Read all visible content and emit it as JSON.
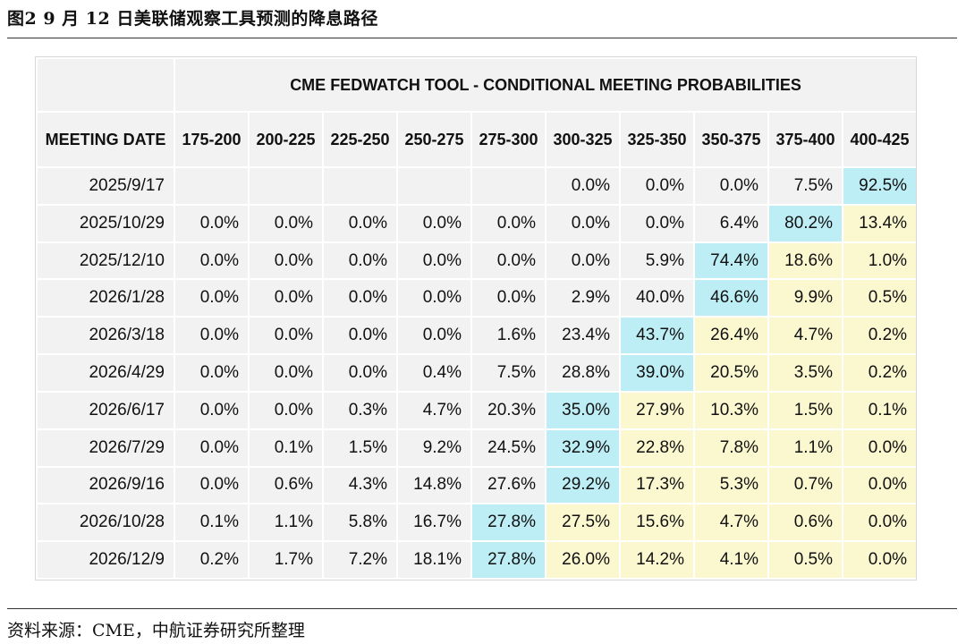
{
  "figure_title": "图2  9 月 12 日美联储观察工具预测的降息路径",
  "source": "资料来源：CME，中航证券研究所整理",
  "table": {
    "title": "CME FEDWATCH TOOL - CONDITIONAL MEETING PROBABILITIES",
    "date_header": "MEETING DATE",
    "columns": [
      "175-200",
      "200-225",
      "225-250",
      "250-275",
      "275-300",
      "300-325",
      "325-350",
      "350-375",
      "375-400",
      "400-425"
    ],
    "colors": {
      "highlight": "#bdeef5",
      "above_highlight": "#fbf8d0",
      "base": "#f2f2f2"
    },
    "rows": [
      {
        "date": "2025/9/17",
        "values": [
          "",
          "",
          "",
          "",
          "",
          "0.0%",
          "0.0%",
          "0.0%",
          "7.5%",
          "92.5%"
        ],
        "highlight": 9
      },
      {
        "date": "2025/10/29",
        "values": [
          "0.0%",
          "0.0%",
          "0.0%",
          "0.0%",
          "0.0%",
          "0.0%",
          "0.0%",
          "6.4%",
          "80.2%",
          "13.4%"
        ],
        "highlight": 8
      },
      {
        "date": "2025/12/10",
        "values": [
          "0.0%",
          "0.0%",
          "0.0%",
          "0.0%",
          "0.0%",
          "0.0%",
          "5.9%",
          "74.4%",
          "18.6%",
          "1.0%"
        ],
        "highlight": 7
      },
      {
        "date": "2026/1/28",
        "values": [
          "0.0%",
          "0.0%",
          "0.0%",
          "0.0%",
          "0.0%",
          "2.9%",
          "40.0%",
          "46.6%",
          "9.9%",
          "0.5%"
        ],
        "highlight": 7
      },
      {
        "date": "2026/3/18",
        "values": [
          "0.0%",
          "0.0%",
          "0.0%",
          "0.0%",
          "1.6%",
          "23.4%",
          "43.7%",
          "26.4%",
          "4.7%",
          "0.2%"
        ],
        "highlight": 6
      },
      {
        "date": "2026/4/29",
        "values": [
          "0.0%",
          "0.0%",
          "0.0%",
          "0.4%",
          "7.5%",
          "28.8%",
          "39.0%",
          "20.5%",
          "3.5%",
          "0.2%"
        ],
        "highlight": 6
      },
      {
        "date": "2026/6/17",
        "values": [
          "0.0%",
          "0.0%",
          "0.3%",
          "4.7%",
          "20.3%",
          "35.0%",
          "27.9%",
          "10.3%",
          "1.5%",
          "0.1%"
        ],
        "highlight": 5
      },
      {
        "date": "2026/7/29",
        "values": [
          "0.0%",
          "0.1%",
          "1.5%",
          "9.2%",
          "24.5%",
          "32.9%",
          "22.8%",
          "7.8%",
          "1.1%",
          "0.0%"
        ],
        "highlight": 5
      },
      {
        "date": "2026/9/16",
        "values": [
          "0.0%",
          "0.6%",
          "4.3%",
          "14.8%",
          "27.6%",
          "29.2%",
          "17.3%",
          "5.3%",
          "0.7%",
          "0.0%"
        ],
        "highlight": 5
      },
      {
        "date": "2026/10/28",
        "values": [
          "0.1%",
          "1.1%",
          "5.8%",
          "16.7%",
          "27.8%",
          "27.5%",
          "15.6%",
          "4.7%",
          "0.6%",
          "0.0%"
        ],
        "highlight": 4
      },
      {
        "date": "2026/12/9",
        "values": [
          "0.2%",
          "1.7%",
          "7.2%",
          "18.1%",
          "27.8%",
          "26.0%",
          "14.2%",
          "4.1%",
          "0.5%",
          "0.0%"
        ],
        "highlight": 4
      }
    ]
  }
}
